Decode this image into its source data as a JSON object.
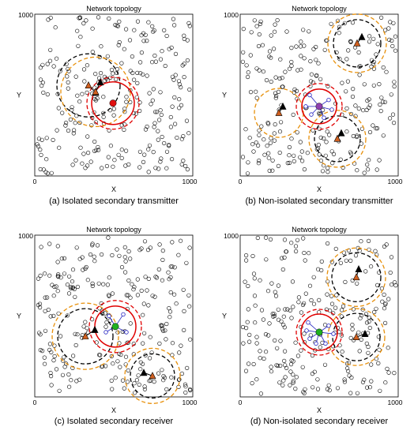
{
  "figure": {
    "panels": [
      {
        "id": "a",
        "title": "Network topology",
        "caption": "(a) Isolated secondary transmitter"
      },
      {
        "id": "b",
        "title": "Network topology",
        "caption": "(b) Non-isolated secondary transmitter"
      },
      {
        "id": "c",
        "title": "Network topology",
        "caption": "(c) Isolated secondary receiver"
      },
      {
        "id": "d",
        "title": "Network topology",
        "caption": "(d) Non-isolated secondary receiver"
      }
    ]
  },
  "colors": {
    "node_stroke": "#000000",
    "red": "#e00000",
    "black_dash": "#000000",
    "orange_dash": "#e8900a",
    "primary_fill": "#d06020",
    "secondary_tx": "#e01010",
    "secondary_rx": "#20b020",
    "link_blue": "#2020c0",
    "receiver_purple": "#9040b0"
  },
  "chart_data": [
    {
      "type": "scatter",
      "title": "Network topology",
      "xlabel": "X",
      "ylabel": "Y",
      "xlim": [
        0,
        1000
      ],
      "ylim": [
        0,
        1000
      ],
      "xticks": [
        "0",
        "1000"
      ],
      "yticks": [
        "1000"
      ],
      "seed": 11,
      "node_count": 260,
      "secondary": {
        "kind": "transmitter",
        "x": 495,
        "y": 450,
        "color": "#e01010",
        "solid_r": 135,
        "dash_r": 165
      },
      "primaries": [
        {
          "tx": [
            385,
            515
          ],
          "rx": [
            340,
            560
          ],
          "r": 200,
          "color": "#000000"
        },
        {
          "tx": [
            415,
            580
          ],
          "rx": [
            385,
            520
          ],
          "r": 220,
          "color": "#e8900a"
        }
      ],
      "neighbors": []
    },
    {
      "type": "scatter",
      "title": "Network topology",
      "xlabel": "X",
      "ylabel": "Y",
      "xlim": [
        0,
        1000
      ],
      "ylim": [
        0,
        1000
      ],
      "xticks": [
        "0",
        "1000"
      ],
      "yticks": [
        "1000"
      ],
      "seed": 27,
      "node_count": 250,
      "secondary": {
        "kind": "transmitter",
        "x": 500,
        "y": 430,
        "color": "#9040b0",
        "solid_r": 110,
        "dash_r": 145
      },
      "primaries": [
        {
          "tx": [
            770,
            860
          ],
          "rx": [
            740,
            820
          ],
          "r": 150,
          "color": "#000000"
        },
        {
          "tx": [
            770,
            860
          ],
          "rx": [
            740,
            820
          ],
          "r": 185,
          "color": "#e8900a"
        },
        {
          "tx": [
            270,
            430
          ],
          "rx": [
            245,
            390
          ],
          "r": 155,
          "color": "#e8900a"
        },
        {
          "tx": [
            640,
            265
          ],
          "rx": [
            615,
            230
          ],
          "r": 145,
          "color": "#000000"
        },
        {
          "tx": [
            640,
            265
          ],
          "rx": [
            615,
            230
          ],
          "r": 180,
          "color": "#e8900a"
        }
      ],
      "neighbors": [
        [
          440,
          500
        ],
        [
          450,
          380
        ],
        [
          560,
          470
        ],
        [
          530,
          360
        ],
        [
          415,
          430
        ],
        [
          580,
          410
        ]
      ]
    },
    {
      "type": "scatter",
      "title": "Network topology",
      "xlabel": "X",
      "ylabel": "Y",
      "xlim": [
        0,
        1000
      ],
      "ylim": [
        0,
        1000
      ],
      "xticks": [
        "0",
        "1000"
      ],
      "yticks": [
        "1000"
      ],
      "seed": 53,
      "node_count": 260,
      "secondary": {
        "kind": "receiver",
        "x": 510,
        "y": 435,
        "color": "#20b020",
        "solid_r": 130,
        "dash_r": 165
      },
      "primaries": [
        {
          "tx": [
            380,
            415
          ],
          "rx": [
            320,
            375
          ],
          "r": 175,
          "color": "#000000"
        },
        {
          "tx": [
            380,
            415
          ],
          "rx": [
            320,
            375
          ],
          "r": 210,
          "color": "#e8900a"
        },
        {
          "tx": [
            690,
            150
          ],
          "rx": [
            745,
            130
          ],
          "r": 140,
          "color": "#000000"
        },
        {
          "tx": [
            690,
            150
          ],
          "rx": [
            745,
            130
          ],
          "r": 175,
          "color": "#e8900a"
        }
      ],
      "neighbors": [
        [
          560,
          510
        ],
        [
          470,
          500
        ],
        [
          580,
          400
        ],
        [
          450,
          400
        ]
      ]
    },
    {
      "type": "scatter",
      "title": "Network topology",
      "xlabel": "X",
      "ylabel": "Y",
      "xlim": [
        0,
        1000
      ],
      "ylim": [
        0,
        1000
      ],
      "xticks": [
        "0",
        "1000"
      ],
      "yticks": [
        "1000"
      ],
      "seed": 79,
      "node_count": 250,
      "secondary": {
        "kind": "receiver",
        "x": 500,
        "y": 400,
        "color": "#20b020",
        "solid_r": 115,
        "dash_r": 145
      },
      "primaries": [
        {
          "tx": [
            750,
            790
          ],
          "rx": [
            735,
            740
          ],
          "r": 155,
          "color": "#000000"
        },
        {
          "tx": [
            750,
            790
          ],
          "rx": [
            735,
            740
          ],
          "r": 185,
          "color": "#e8900a"
        },
        {
          "tx": [
            790,
            390
          ],
          "rx": [
            735,
            370
          ],
          "r": 150,
          "color": "#000000"
        },
        {
          "tx": [
            790,
            390
          ],
          "rx": [
            735,
            370
          ],
          "r": 180,
          "color": "#e8900a"
        }
      ],
      "neighbors": [
        [
          420,
          410
        ],
        [
          560,
          440
        ],
        [
          480,
          330
        ],
        [
          540,
          330
        ],
        [
          440,
          360
        ],
        [
          590,
          390
        ],
        [
          430,
          460
        ]
      ]
    }
  ]
}
